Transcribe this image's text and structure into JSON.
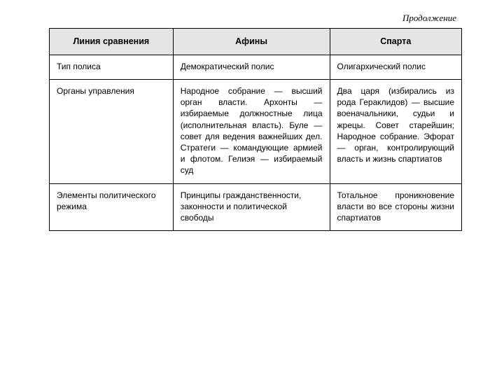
{
  "continuation_label": "Продолжение",
  "table": {
    "columns": [
      "Линия сравнения",
      "Афины",
      "Спарта"
    ],
    "col_widths_pct": [
      30,
      38,
      32
    ],
    "header_bg": "#e5e5e5",
    "border_color": "#000000",
    "font_family": "Arial",
    "font_size_pt": 12,
    "rows": [
      {
        "c1": "Тип полиса",
        "c2": "Демократический полис",
        "c3": "Олигархический полис"
      },
      {
        "c1": "Органы управления",
        "c2": "Народное собрание — высший орган власти. Архонты — избираемые должностные лица (исполнительная власть). Буле — совет для ведения важнейших дел. Стратеги — командующие армией и флотом. Гелиэя — избираемый суд",
        "c3": "Два царя (изби­рались из рода Гераклидов) — высшие воена­чальники, судьи и жрецы. Совет старей­шин; Народное соб­рание. Эфорат — орган, контролирующий власть и жизнь спартиатов"
      },
      {
        "c1": "Элементы политического режима",
        "c2": "Принципы гражданственности, законности и политической свободы",
        "c3": "Тотальное про­никновение власти во все стороны жизни спартиатов"
      }
    ]
  }
}
